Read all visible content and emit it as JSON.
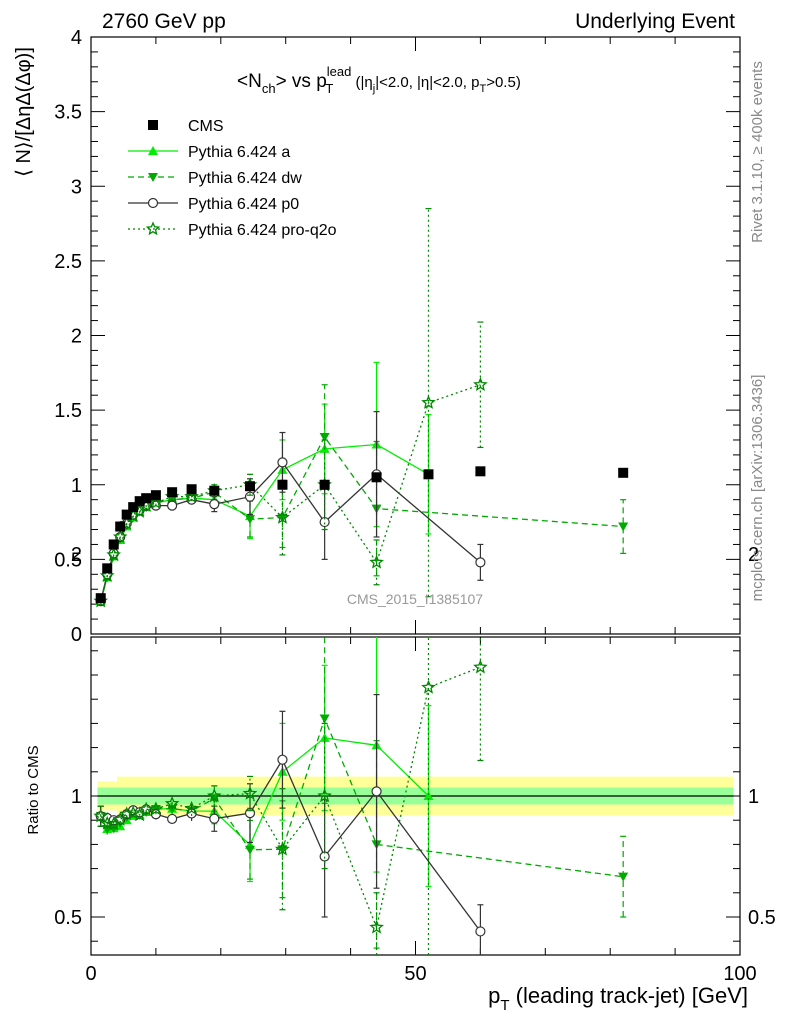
{
  "header": {
    "left": "2760 GeV pp",
    "right": "Underlying Event"
  },
  "title": {
    "prefix": "<N",
    "prefix_sub": "ch",
    "middle": "> vs p",
    "sup": "lead",
    "sub": "T",
    "cuts_a": " (|η",
    "cuts_a_sub": "j",
    "cuts_b": "|<2.0, |η|<2.0, p",
    "cuts_b_sub": "T",
    "cuts_c": ">0.5)"
  },
  "side_labels": {
    "rivet": "Rivet 3.1.10, ≥ 400k events",
    "mcplots": "mcplots.cern.ch [arXiv:1306.3436]"
  },
  "watermark": "CMS_2015_I1385107",
  "axes": {
    "ylabel_main": "⟨ N⟩/[ΔηΔ(Δφ)]",
    "ylabel_ratio": "Ratio to CMS",
    "xlabel_prefix": "p",
    "xlabel_sub": "T",
    "xlabel_rest": " (leading track-jet) [GeV]"
  },
  "chart_data": {
    "type": "scatter",
    "x_range": [
      0,
      100
    ],
    "y_range_main": [
      0,
      4
    ],
    "y_range_ratio": [
      0.35,
      2.35
    ],
    "x_ticks": [
      "0",
      "50",
      "100"
    ],
    "y_ticks_main": [
      "0",
      "0.5",
      "1",
      "1.5",
      "2",
      "2.5",
      "3",
      "3.5",
      "4"
    ],
    "y_ticks_ratio": [
      "0.5",
      "1",
      "2"
    ],
    "legend_position": "top-left",
    "reference": {
      "name": "CMS",
      "color": "#000000",
      "x": [
        1.5,
        2.5,
        3.5,
        4.5,
        5.5,
        6.5,
        7.5,
        8.5,
        10,
        12.5,
        15.5,
        19,
        24.5,
        29.5,
        36,
        44,
        52,
        60,
        82
      ],
      "y": [
        0.24,
        0.44,
        0.6,
        0.72,
        0.8,
        0.85,
        0.89,
        0.91,
        0.93,
        0.95,
        0.97,
        0.96,
        0.99,
        1.0,
        1.0,
        1.05,
        1.07,
        1.09,
        1.08
      ]
    },
    "series": [
      {
        "name": "Pythia 6.424 a",
        "color": "#00ee00",
        "dash": "none",
        "marker": "triangle-up",
        "x": [
          1.5,
          2.5,
          3.5,
          4.5,
          5.5,
          6.5,
          7.5,
          8.5,
          10,
          12.5,
          15.5,
          19,
          24.5,
          29.5,
          36,
          44,
          52
        ],
        "y": [
          0.22,
          0.38,
          0.52,
          0.63,
          0.72,
          0.78,
          0.82,
          0.85,
          0.88,
          0.9,
          0.91,
          0.9,
          0.79,
          1.1,
          1.24,
          1.27,
          1.07
        ],
        "err": [
          0.01,
          0.01,
          0.01,
          0.01,
          0.01,
          0.01,
          0.01,
          0.01,
          0.02,
          0.02,
          0.03,
          0.05,
          0.15,
          0.2,
          0.3,
          0.55,
          0.4
        ]
      },
      {
        "name": "Pythia 6.424 dw",
        "color": "#00aa00",
        "dash": "6,4",
        "marker": "triangle-down",
        "x": [
          1.5,
          2.5,
          3.5,
          4.5,
          5.5,
          6.5,
          7.5,
          8.5,
          10,
          12.5,
          15.5,
          19,
          24.5,
          29.5,
          36,
          44,
          82
        ],
        "y": [
          0.22,
          0.38,
          0.52,
          0.64,
          0.73,
          0.79,
          0.82,
          0.85,
          0.88,
          0.9,
          0.91,
          0.95,
          0.77,
          0.78,
          1.32,
          0.84,
          0.72
        ],
        "err": [
          0.01,
          0.01,
          0.01,
          0.01,
          0.01,
          0.01,
          0.01,
          0.01,
          0.02,
          0.02,
          0.03,
          0.05,
          0.12,
          0.2,
          0.35,
          0.45,
          0.18
        ]
      },
      {
        "name": "Pythia 6.424 p0",
        "color": "#333333",
        "dash": "none",
        "marker": "circle-open",
        "x": [
          1.5,
          2.5,
          3.5,
          4.5,
          5.5,
          6.5,
          7.5,
          8.5,
          10,
          12.5,
          15.5,
          19,
          24.5,
          29.5,
          36,
          44,
          60
        ],
        "y": [
          0.22,
          0.4,
          0.54,
          0.65,
          0.74,
          0.8,
          0.83,
          0.86,
          0.86,
          0.86,
          0.9,
          0.87,
          0.92,
          1.15,
          0.75,
          1.07,
          0.48
        ],
        "err": [
          0.01,
          0.01,
          0.01,
          0.01,
          0.01,
          0.01,
          0.01,
          0.01,
          0.02,
          0.02,
          0.03,
          0.05,
          0.12,
          0.2,
          0.25,
          0.42,
          0.12
        ]
      },
      {
        "name": "Pythia 6.424 pro-q2o",
        "color": "#008800",
        "dash": "2,3",
        "marker": "star",
        "x": [
          1.5,
          2.5,
          3.5,
          4.5,
          5.5,
          6.5,
          7.5,
          8.5,
          10,
          12.5,
          15.5,
          19,
          24.5,
          29.5,
          36,
          44,
          52,
          60
        ],
        "y": [
          0.22,
          0.39,
          0.53,
          0.65,
          0.74,
          0.79,
          0.82,
          0.86,
          0.88,
          0.92,
          0.92,
          0.96,
          1.0,
          0.78,
          1.0,
          0.48,
          1.55,
          1.67
        ],
        "err": [
          0.01,
          0.01,
          0.01,
          0.01,
          0.01,
          0.01,
          0.01,
          0.01,
          0.02,
          0.02,
          0.03,
          0.04,
          0.07,
          0.25,
          0.3,
          0.15,
          1.3,
          0.42
        ]
      }
    ]
  }
}
